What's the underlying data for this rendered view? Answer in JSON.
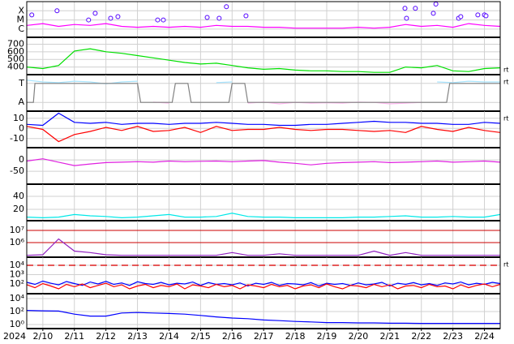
{
  "chart_data": [
    {
      "type": "line",
      "ylim": [
        0.1,
        4.0
      ],
      "yticks": [
        {
          "value": 1,
          "label": "C"
        },
        {
          "value": 2,
          "label": "M"
        },
        {
          "value": 3,
          "label": "X"
        }
      ],
      "xlim": [
        9.49,
        24.5
      ],
      "grid": true,
      "x": [
        9.5,
        10,
        10.5,
        11,
        11.5,
        12,
        12.5,
        13,
        13.5,
        14,
        14.5,
        15,
        15.5,
        16,
        16.5,
        17,
        17.5,
        18,
        18.5,
        19,
        19.5,
        20,
        20.5,
        21,
        21.5,
        22,
        22.5,
        23,
        23.5,
        24,
        24.5
      ],
      "series": [
        {
          "color": "#ff00ff",
          "values": [
            1.4,
            1.6,
            1.3,
            1.5,
            1.4,
            1.6,
            1.3,
            1.2,
            1.3,
            1.2,
            1.3,
            1.2,
            1.4,
            1.3,
            1.3,
            1.2,
            1.2,
            1.1,
            1.1,
            1.1,
            1.1,
            1.2,
            1.1,
            1.2,
            1.5,
            1.3,
            1.4,
            1.2,
            1.6,
            1.4,
            1.3
          ]
        },
        {
          "color": "#5000ff",
          "marker": true,
          "x": [
            9.65,
            10.45,
            11.45,
            11.66,
            12.15,
            12.38,
            13.64,
            13.82,
            15.21,
            15.59,
            15.82,
            16.44,
            21.48,
            21.53,
            21.81,
            22.38,
            22.46,
            23.18,
            23.25,
            23.79,
            24.0,
            24.05
          ],
          "values": [
            2.55,
            3.0,
            2.0,
            2.73,
            2.18,
            2.36,
            2.0,
            2.0,
            2.27,
            2.18,
            3.45,
            2.45,
            3.27,
            2.18,
            3.27,
            2.73,
            3.73,
            2.18,
            2.36,
            2.55,
            2.55,
            2.45
          ]
        }
      ]
    },
    {
      "type": "line",
      "ylim": [
        300,
        790
      ],
      "yticks": [
        400,
        500,
        600,
        700
      ],
      "xlim": [
        9.49,
        24.5
      ],
      "grid": true,
      "annotation": "rt",
      "x": [
        9.5,
        10,
        10.5,
        11,
        11.5,
        12,
        12.5,
        13,
        13.5,
        14,
        14.5,
        15,
        15.5,
        16,
        16.5,
        17,
        17.5,
        18,
        18.5,
        19,
        19.5,
        20,
        20.5,
        21,
        21.5,
        22,
        22.5,
        23,
        23.5,
        24,
        24.5
      ],
      "series": [
        {
          "color": "#00e000",
          "values": [
            400,
            380,
            420,
            610,
            640,
            600,
            580,
            550,
            520,
            490,
            460,
            440,
            450,
            420,
            390,
            370,
            380,
            360,
            350,
            350,
            340,
            340,
            330,
            330,
            400,
            390,
            420,
            350,
            340,
            380,
            390
          ]
        }
      ]
    },
    {
      "type": "line",
      "ylim": [
        0,
        1
      ],
      "yticks": [
        {
          "value": 0.24,
          "label": "A"
        },
        {
          "value": 0.76,
          "label": "T"
        }
      ],
      "xlim": [
        9.49,
        24.5
      ],
      "grid": true,
      "annotation": "rt",
      "x": [
        9.5,
        10,
        10.5,
        11,
        11.5,
        12,
        12.5,
        13,
        13.5,
        14,
        14.5,
        15,
        15.5,
        16,
        16.5,
        17,
        17.5,
        18,
        18.5,
        19,
        19.5,
        20,
        20.5,
        21,
        21.5,
        22,
        22.5,
        23,
        23.5,
        24,
        24.5
      ],
      "series": [
        {
          "color": "#a8e4ff",
          "values": [
            0.85,
            0.8,
            0.78,
            0.82,
            0.8,
            0.75,
            0.8,
            0.82,
            null,
            null,
            0.8,
            null,
            0.78,
            0.8,
            null,
            null,
            null,
            null,
            null,
            0.8,
            null,
            null,
            null,
            null,
            null,
            null,
            0.8,
            0.78,
            0.82,
            0.8,
            0.8
          ]
        },
        {
          "color": "#ffb8f0",
          "values": [
            null,
            0.2,
            null,
            null,
            null,
            null,
            null,
            null,
            0.25,
            0.22,
            null,
            0.2,
            null,
            null,
            0.22,
            0.25,
            0.2,
            0.24,
            0.22,
            0.23,
            0.22,
            0.25,
            0.24,
            0.2,
            0.22,
            0.24,
            null,
            null,
            0.22,
            null,
            null
          ]
        },
        {
          "color": "#808080",
          "x": [
            9.5,
            9.7,
            9.75,
            13.0,
            13.1,
            14.1,
            14.2,
            14.6,
            14.7,
            15.9,
            16.0,
            16.4,
            16.5,
            22.8,
            22.9,
            24.5
          ],
          "values": [
            0.24,
            0.24,
            0.76,
            0.76,
            0.24,
            0.24,
            0.76,
            0.76,
            0.24,
            0.24,
            0.76,
            0.76,
            0.24,
            0.24,
            0.76,
            0.76
          ]
        }
      ]
    },
    {
      "type": "line",
      "ylim": [
        -19,
        17
      ],
      "yticks": [
        -10,
        0,
        10
      ],
      "xlim": [
        9.49,
        24.5
      ],
      "grid": true,
      "annotation": "rt",
      "x": [
        9.5,
        10,
        10.5,
        11,
        11.5,
        12,
        12.5,
        13,
        13.5,
        14,
        14.5,
        15,
        15.5,
        16,
        16.5,
        17,
        17.5,
        18,
        18.5,
        19,
        19.5,
        20,
        20.5,
        21,
        21.5,
        22,
        22.5,
        23,
        23.5,
        24,
        24.5
      ],
      "series": [
        {
          "color": "#0000ff",
          "values": [
            4,
            3,
            15,
            6,
            5,
            6,
            4,
            5,
            5,
            4,
            5,
            5,
            6,
            5,
            4,
            4,
            3,
            3,
            4,
            4,
            5,
            6,
            7,
            6,
            6,
            5,
            5,
            4,
            4,
            6,
            5
          ]
        },
        {
          "color": "#ff0000",
          "values": [
            2,
            -1,
            -13,
            -6,
            -3,
            1,
            -2,
            2,
            -3,
            -2,
            1,
            -4,
            2,
            -2,
            -1,
            -1,
            1,
            -1,
            -2,
            -1,
            -1,
            -2,
            -3,
            -2,
            -4,
            2,
            -1,
            -3,
            1,
            -2,
            -4
          ]
        }
      ]
    },
    {
      "type": "line",
      "ylim": [
        -107,
        54
      ],
      "yticks": [
        -50,
        0
      ],
      "xlim": [
        9.49,
        24.5
      ],
      "grid": true,
      "x": [
        9.5,
        10,
        10.5,
        11,
        11.5,
        12,
        12.5,
        13,
        13.5,
        14,
        14.5,
        15,
        15.5,
        16,
        16.5,
        17,
        17.5,
        18,
        18.5,
        19,
        19.5,
        20,
        20.5,
        21,
        21.5,
        22,
        22.5,
        23,
        23.5,
        24,
        24.5
      ],
      "series": [
        {
          "color": "#e020e0",
          "values": [
            -5,
            5,
            -10,
            -25,
            -18,
            -12,
            -10,
            -8,
            -10,
            -5,
            -8,
            -6,
            -5,
            -8,
            -5,
            -3,
            -10,
            -15,
            -22,
            -15,
            -12,
            -10,
            -8,
            -12,
            -10,
            -8,
            -5,
            -10,
            -8,
            -5,
            -10
          ]
        }
      ]
    },
    {
      "type": "line",
      "ylim": [
        2.5,
        58.75
      ],
      "yticks": [
        20,
        40
      ],
      "xlim": [
        9.49,
        24.5
      ],
      "grid": true,
      "x": [
        9.5,
        10,
        10.5,
        11,
        11.5,
        12,
        12.5,
        13,
        13.5,
        14,
        14.5,
        15,
        15.5,
        16,
        16.5,
        17,
        17.5,
        18,
        18.5,
        19,
        19.5,
        20,
        20.5,
        21,
        21.5,
        22,
        22.5,
        23,
        23.5,
        24,
        24.5
      ],
      "series": [
        {
          "color": "#00e8e8",
          "values": [
            8,
            7,
            8,
            12,
            10,
            9,
            7,
            8,
            10,
            12,
            8,
            8,
            9,
            14,
            9,
            8,
            8,
            7,
            7,
            7,
            7,
            8,
            8,
            9,
            10,
            8,
            8,
            9,
            8,
            8,
            12
          ]
        }
      ]
    },
    {
      "type": "line",
      "log": true,
      "ylim": [
        63000,
        63000000
      ],
      "yticks": [
        {
          "value": 1000000,
          "label": "10⁶"
        },
        {
          "value": 10000000,
          "label": "10⁷"
        }
      ],
      "xlim": [
        9.49,
        24.5
      ],
      "grid": true,
      "grid_color": "#cc0000",
      "x": [
        9.5,
        10,
        10.5,
        11,
        11.5,
        12,
        12.5,
        13,
        13.5,
        14,
        14.5,
        15,
        15.5,
        16,
        16.5,
        17,
        17.5,
        18,
        18.5,
        19,
        19.5,
        20,
        20.5,
        21,
        21.5,
        22,
        22.5,
        23,
        23.5,
        24,
        24.5
      ],
      "series": [
        {
          "color": "#9020c0",
          "values": [
            90000,
            100000,
            2000000,
            200000,
            150000,
            100000,
            90000,
            90000,
            90000,
            90000,
            90000,
            90000,
            90000,
            150000,
            90000,
            90000,
            120000,
            90000,
            90000,
            90000,
            90000,
            90000,
            200000,
            90000,
            150000,
            90000,
            90000,
            90000,
            90000,
            90000,
            90000
          ]
        }
      ]
    },
    {
      "type": "line",
      "log": true,
      "ylim": [
        9,
        74000
      ],
      "yticks": [
        {
          "value": 100,
          "label": "10²"
        },
        {
          "value": 1000,
          "label": "10³"
        },
        {
          "value": 10000,
          "label": "10⁴"
        }
      ],
      "xlim": [
        9.49,
        24.5
      ],
      "grid": true,
      "annotation": "rt",
      "reference_lines": [
        10000
      ],
      "x": [
        9.5,
        9.75,
        10,
        10.25,
        10.5,
        10.75,
        11,
        11.25,
        11.5,
        11.75,
        12,
        12.25,
        12.5,
        12.75,
        13,
        13.25,
        13.5,
        13.75,
        14,
        14.25,
        14.5,
        14.75,
        15,
        15.25,
        15.5,
        15.75,
        16,
        16.25,
        16.5,
        16.75,
        17,
        17.25,
        17.5,
        17.75,
        18,
        18.25,
        18.5,
        18.75,
        19,
        19.25,
        19.5,
        19.75,
        20,
        20.25,
        20.5,
        20.75,
        21,
        21.25,
        21.5,
        21.75,
        22,
        22.25,
        22.5,
        22.75,
        23,
        23.25,
        23.5,
        23.75,
        24,
        24.25,
        24.5
      ],
      "series": [
        {
          "color": "#0000ff",
          "values": [
            150,
            90,
            200,
            120,
            80,
            180,
            110,
            70,
            160,
            100,
            190,
            90,
            130,
            70,
            170,
            110,
            90,
            150,
            80,
            120,
            100,
            160,
            70,
            140,
            90,
            110,
            80,
            130,
            60,
            120,
            90,
            150,
            70,
            110,
            100,
            80,
            140,
            60,
            120,
            90,
            110,
            70,
            130,
            80,
            100,
            150,
            60,
            120,
            90,
            140,
            80,
            110,
            70,
            130,
            100,
            160,
            80,
            120,
            90,
            150,
            110
          ]
        },
        {
          "color": "#ff0000",
          "values": [
            80,
            40,
            110,
            60,
            30,
            90,
            50,
            100,
            40,
            70,
            120,
            50,
            80,
            30,
            60,
            90,
            40,
            70,
            50,
            100,
            30,
            80,
            60,
            40,
            90,
            50,
            70,
            30,
            80,
            60,
            40,
            90,
            50,
            70,
            30,
            60,
            80,
            40,
            100,
            50,
            30,
            70,
            60,
            40,
            90,
            50,
            80,
            30,
            60,
            70,
            40,
            90,
            50,
            60,
            30,
            80,
            40,
            70,
            100,
            50,
            90
          ]
        }
      ]
    },
    {
      "type": "line",
      "log": true,
      "ylim": [
        0.237,
        56000
      ],
      "yticks": [
        {
          "value": 1,
          "label": "10⁰"
        },
        {
          "value": 100,
          "label": "10²"
        },
        {
          "value": 10000,
          "label": "10⁴"
        }
      ],
      "xlim": [
        9.49,
        24.5
      ],
      "grid": true,
      "xlabel": "2024",
      "xticks": [
        {
          "value": 10,
          "label": "2/10"
        },
        {
          "value": 11,
          "label": "2/11"
        },
        {
          "value": 12,
          "label": "2/12"
        },
        {
          "value": 13,
          "label": "2/13"
        },
        {
          "value": 14,
          "label": "2/14"
        },
        {
          "value": 15,
          "label": "2/15"
        },
        {
          "value": 16,
          "label": "2/16"
        },
        {
          "value": 17,
          "label": "2/17"
        },
        {
          "value": 18,
          "label": "2/18"
        },
        {
          "value": 19,
          "label": "2/19"
        },
        {
          "value": 20,
          "label": "2/20"
        },
        {
          "value": 21,
          "label": "2/21"
        },
        {
          "value": 22,
          "label": "2/22"
        },
        {
          "value": 23,
          "label": "2/23"
        },
        {
          "value": 24,
          "label": "2/24"
        }
      ],
      "x": [
        9.5,
        10,
        10.5,
        11,
        11.5,
        12,
        12.5,
        13,
        13.5,
        14,
        14.5,
        15,
        15.5,
        16,
        16.5,
        17,
        17.5,
        18,
        18.5,
        19,
        19.5,
        20,
        20.5,
        21,
        21.5,
        22,
        22.5,
        23,
        23.5,
        24,
        24.5
      ],
      "series": [
        {
          "color": "#0000ff",
          "values": [
            150,
            130,
            120,
            40,
            20,
            20,
            60,
            70,
            60,
            50,
            40,
            25,
            15,
            10,
            8,
            5,
            4,
            3,
            2.5,
            2,
            2,
            1.8,
            1.8,
            1.6,
            1.6,
            1.5,
            1.5,
            1.5,
            1.5,
            1.5,
            1.5
          ]
        }
      ]
    }
  ]
}
